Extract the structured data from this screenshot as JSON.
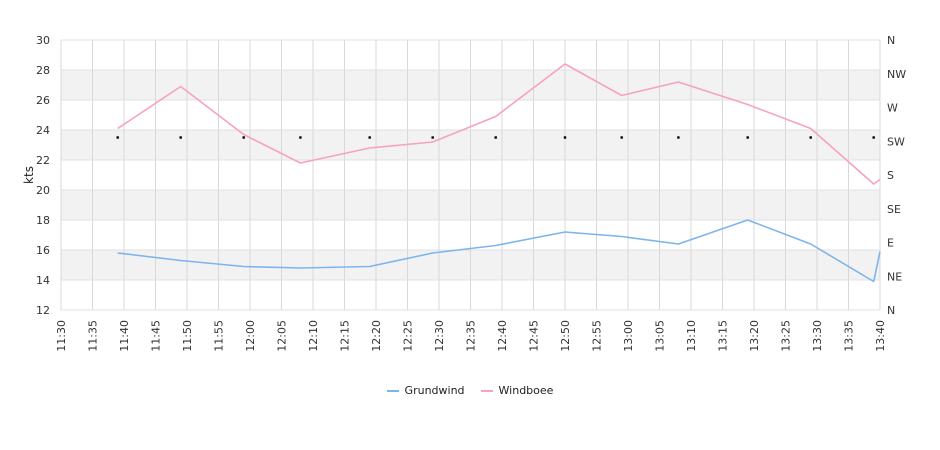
{
  "chart_data": {
    "type": "line",
    "ylabel": "kts",
    "ylim": [
      12,
      30
    ],
    "y_ticks": [
      12,
      14,
      16,
      18,
      20,
      22,
      24,
      26,
      28,
      30
    ],
    "x_ticks": [
      "11:30",
      "11:35",
      "11:40",
      "11:45",
      "11:50",
      "11:55",
      "12:00",
      "12:05",
      "12:10",
      "12:15",
      "12:20",
      "12:25",
      "12:30",
      "12:35",
      "12:40",
      "12:45",
      "12:50",
      "12:55",
      "13:00",
      "13:05",
      "13:10",
      "13:15",
      "13:20",
      "13:25",
      "13:30",
      "13:35",
      "13:40"
    ],
    "y2_labels": [
      "N",
      "NE",
      "E",
      "SE",
      "S",
      "SW",
      "W",
      "NW",
      "N"
    ],
    "grid": true,
    "legend_position": "bottom",
    "series": [
      {
        "name": "Grundwind",
        "color": "#7cb5ec",
        "x": [
          "11:39",
          "11:49",
          "11:59",
          "12:08",
          "12:19",
          "12:29",
          "12:39",
          "12:50",
          "12:59",
          "13:08",
          "13:19",
          "13:29",
          "13:39",
          "13:40"
        ],
        "values": [
          15.8,
          15.3,
          14.9,
          14.8,
          14.9,
          15.8,
          16.3,
          17.2,
          16.9,
          16.4,
          18.0,
          16.4,
          13.9,
          15.9
        ]
      },
      {
        "name": "Windboee",
        "color": "#f7a1c4",
        "x": [
          "11:39",
          "11:49",
          "11:59",
          "12:08",
          "12:19",
          "12:29",
          "12:39",
          "12:50",
          "12:59",
          "13:08",
          "13:19",
          "13:29",
          "13:39",
          "13:40"
        ],
        "values": [
          24.1,
          26.9,
          23.7,
          21.8,
          22.8,
          23.2,
          24.9,
          28.4,
          26.3,
          27.2,
          25.7,
          24.1,
          20.4,
          20.7
        ]
      },
      {
        "name": "",
        "type": "scatter",
        "color": "#000000",
        "x": [
          "11:39",
          "11:49",
          "11:59",
          "12:08",
          "12:19",
          "12:29",
          "12:39",
          "12:50",
          "12:59",
          "13:08",
          "13:19",
          "13:29",
          "13:39"
        ],
        "values": [
          23.5,
          23.5,
          23.5,
          23.5,
          23.5,
          23.5,
          23.5,
          23.5,
          23.5,
          23.5,
          23.5,
          23.5,
          23.5
        ]
      }
    ]
  }
}
